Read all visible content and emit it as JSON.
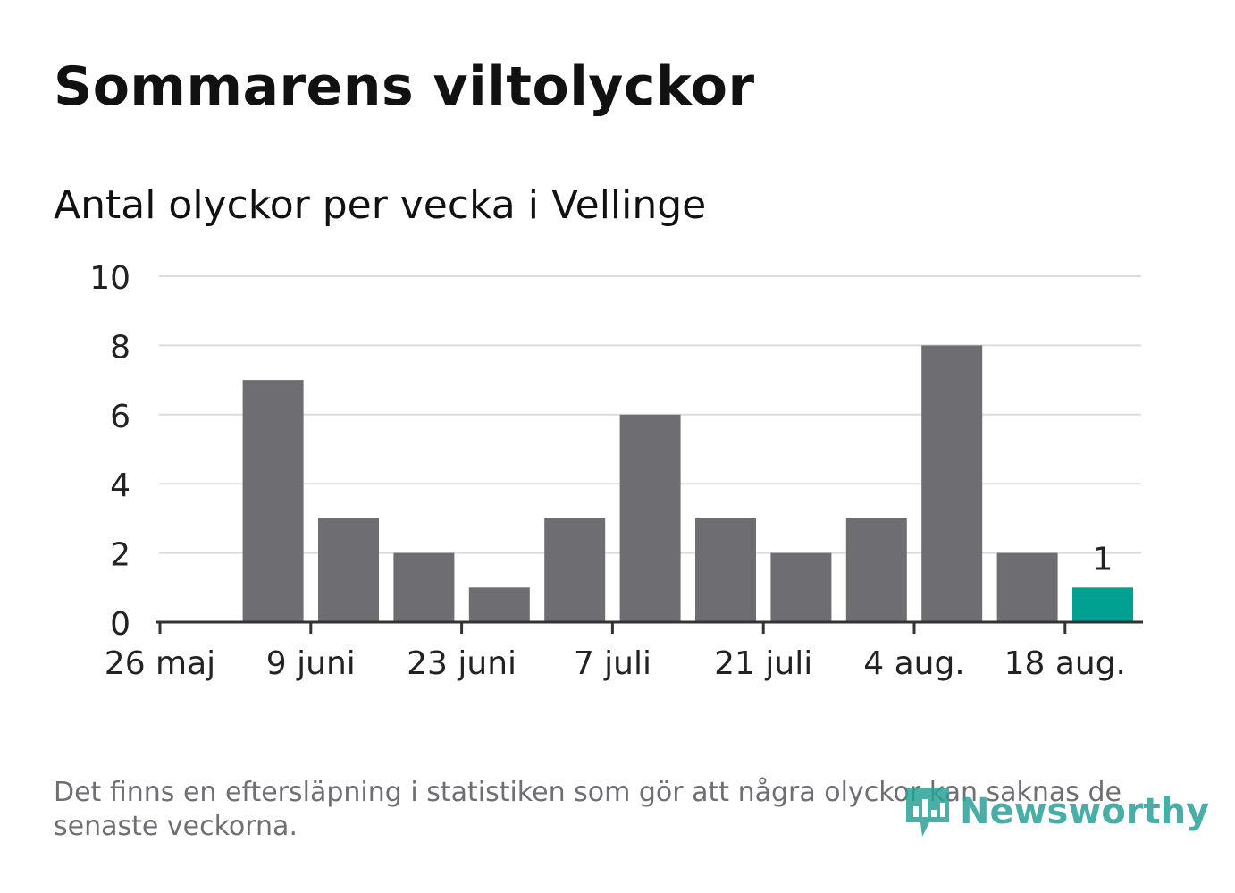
{
  "title": "Sommarens viltolyckor",
  "subtitle": "Antal olyckor per vecka i Vellinge",
  "footnote": "Det finns en eftersläpning i statistiken som gör att några olyckor kan saknas de senaste veckorna.",
  "logo": {
    "text": "Newsworthy",
    "icon": "chart-bubble-icon"
  },
  "colors": {
    "bar": "#6e6d72",
    "highlight": "#00a192",
    "grid": "#dcdcdc",
    "axis": "#333333",
    "logo": "#2aa198"
  },
  "chart_data": {
    "type": "bar",
    "x": [
      "2019-05-26",
      "2019-06-02",
      "2019-06-09",
      "2019-06-16",
      "2019-06-23",
      "2019-06-30",
      "2019-07-07",
      "2019-07-14",
      "2019-07-21",
      "2019-07-28",
      "2019-08-04",
      "2019-08-11",
      "2019-08-18"
    ],
    "values": [
      0,
      7,
      3,
      2,
      1,
      3,
      6,
      3,
      2,
      3,
      8,
      2,
      1
    ],
    "highlight_index": 12,
    "data_labels": [
      {
        "index": 12,
        "text": "1"
      }
    ],
    "x_tick_labels": [
      "26 maj",
      "9 juni",
      "23 juni",
      "7 juli",
      "21 juli",
      "4 aug.",
      "18 aug."
    ],
    "y_ticks": [
      "0",
      "2",
      "4",
      "6",
      "8",
      "10"
    ],
    "ylim": [
      0,
      10
    ],
    "grid": true,
    "legend": "none",
    "xlabel": "",
    "ylabel": ""
  }
}
